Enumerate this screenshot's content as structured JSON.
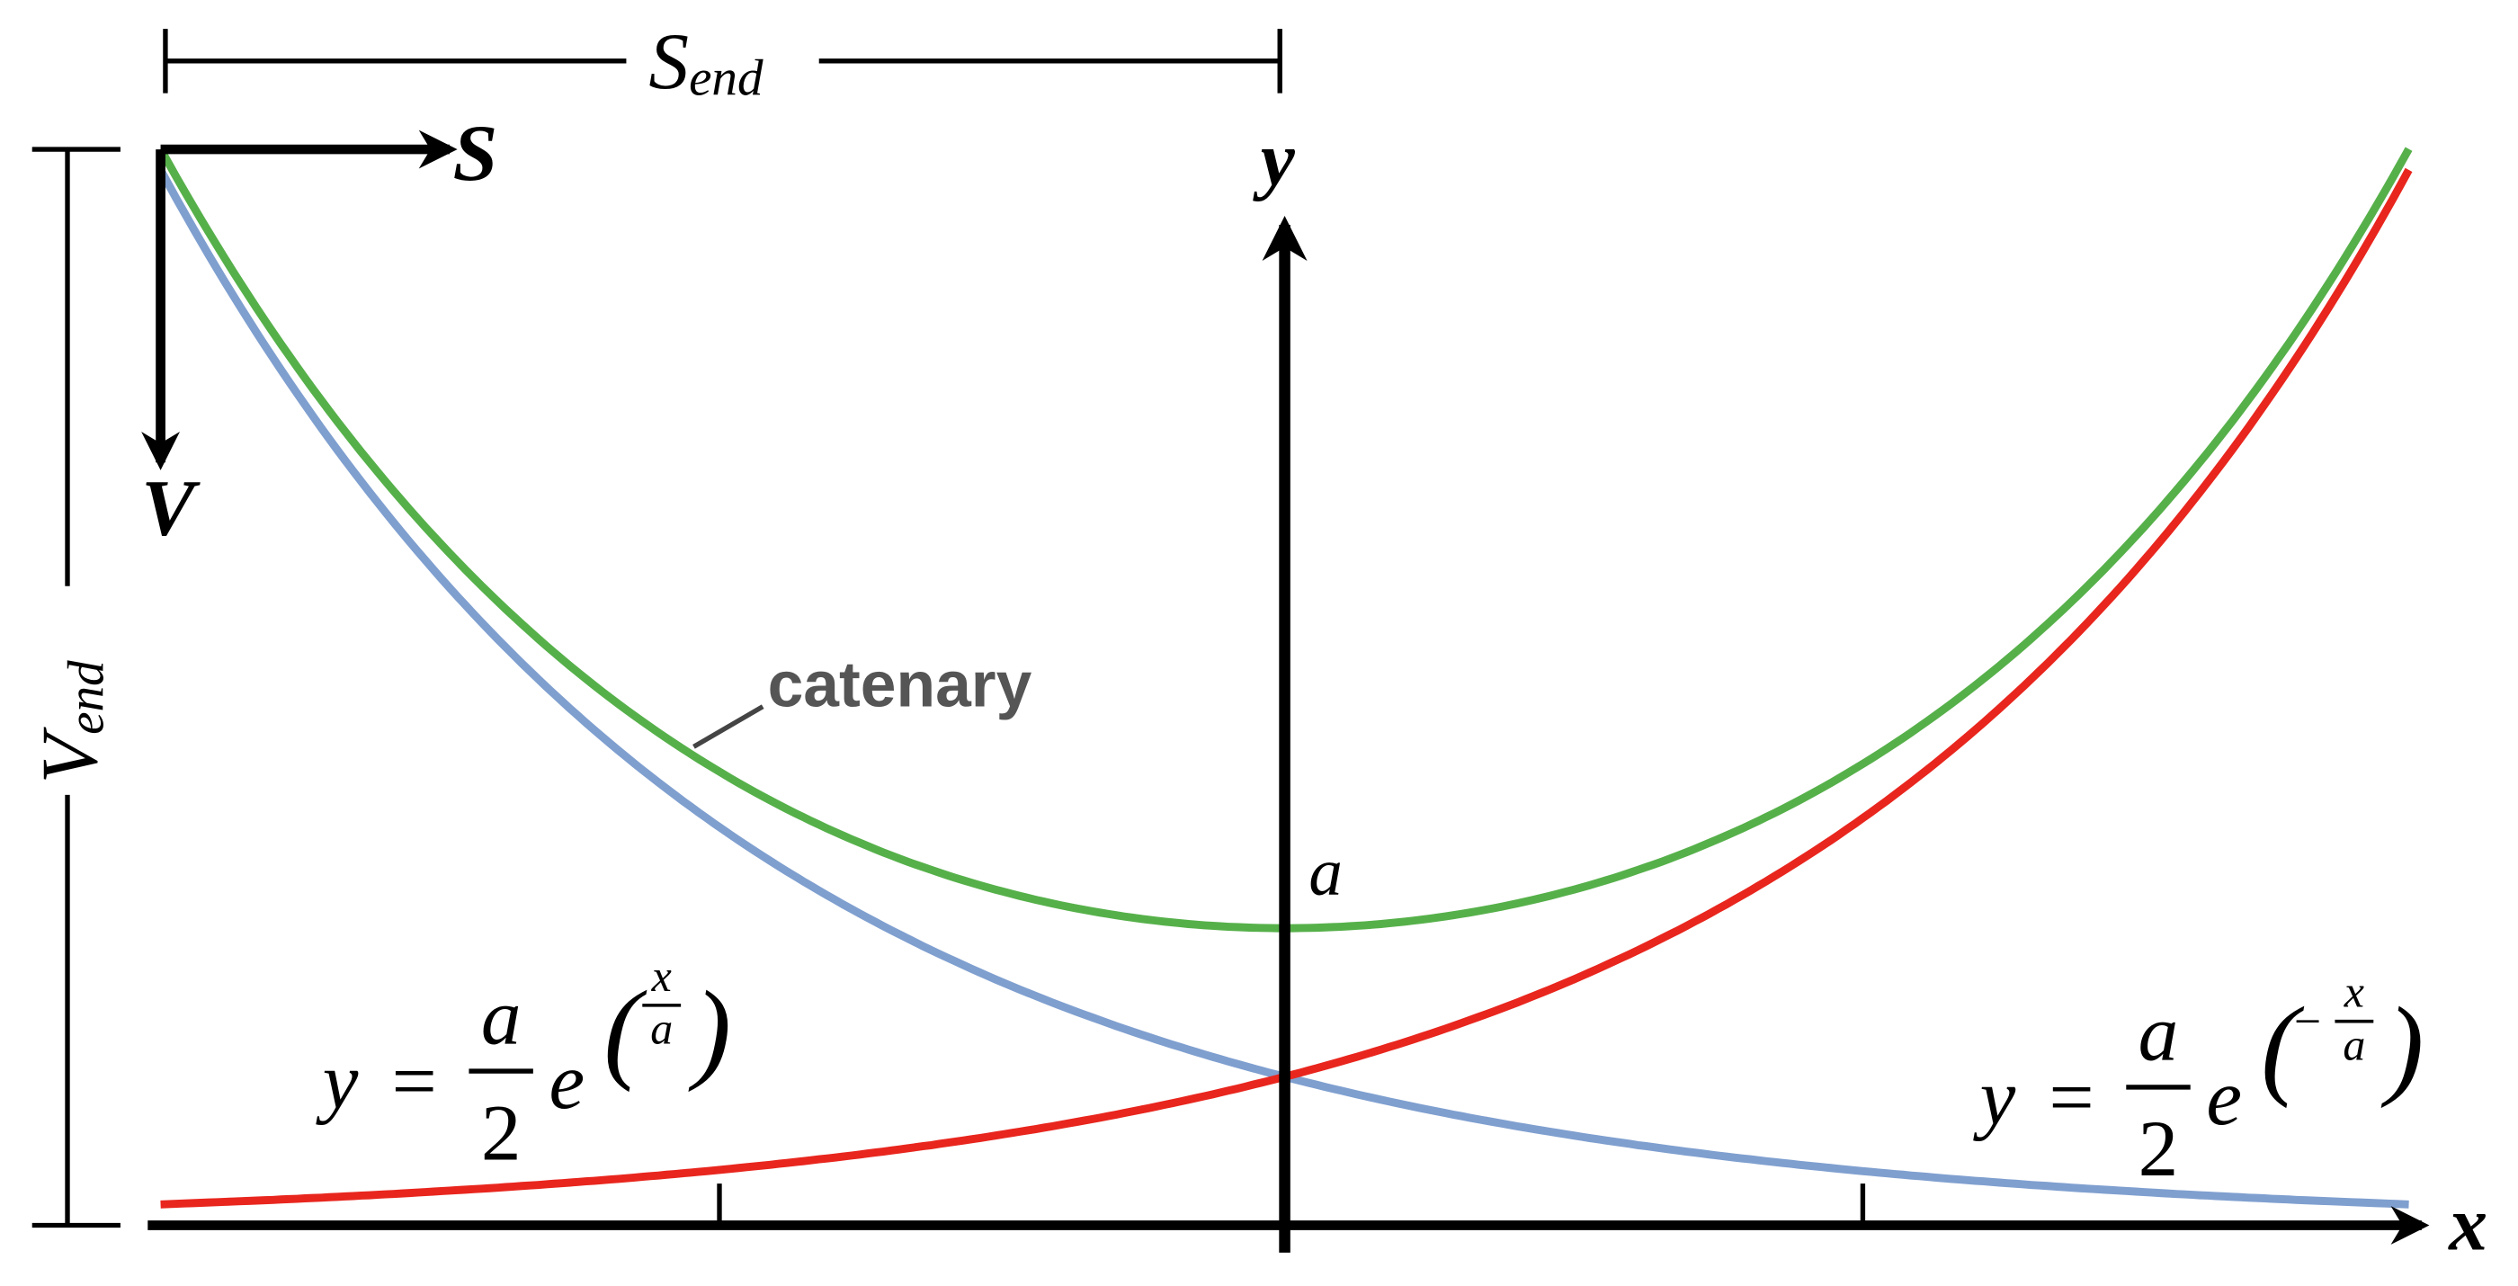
{
  "labels": {
    "s_end": {
      "main": "S",
      "sub": "end"
    },
    "s": "S",
    "v": "V",
    "v_end": {
      "main": "V",
      "sub": "end"
    },
    "y_axis": "y",
    "x_axis": "x",
    "a": "a",
    "curve": "catenary"
  },
  "equations": [
    {
      "lhs": "y",
      "eq": "=",
      "num": "a",
      "den": "2",
      "base": "e",
      "exp_num": "x",
      "exp_den": "a"
    },
    {
      "lhs": "y",
      "eq": "=",
      "num": "a",
      "den": "2",
      "base": "e",
      "sign": "−",
      "exp_num": "x",
      "exp_den": "a"
    }
  ]
}
